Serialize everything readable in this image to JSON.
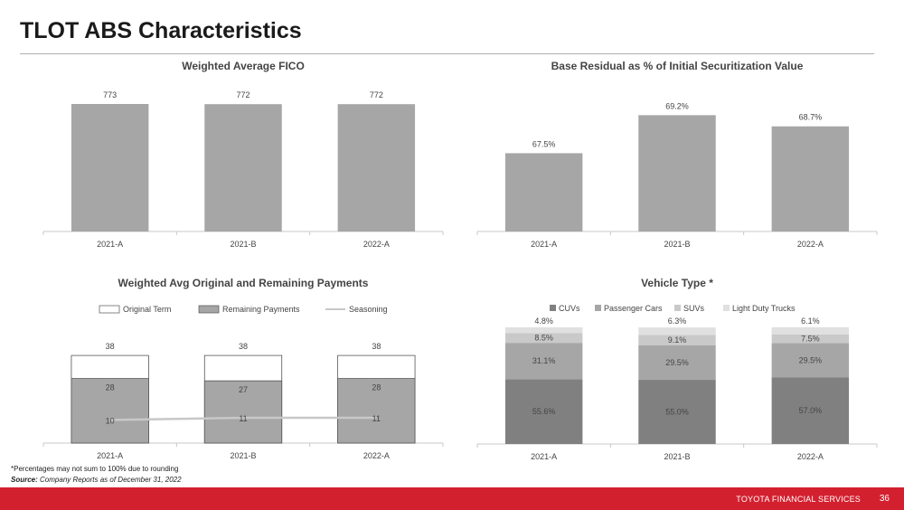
{
  "page": {
    "title": "TLOT ABS Characteristics",
    "footnote": "*Percentages may not sum to 100% due to rounding",
    "source_label": "Source:",
    "source_text": "Company Reports as of December 31, 2022",
    "footer_brand": "TOYOTA FINANCIAL SERVICES",
    "page_number": "36",
    "colors": {
      "accent": "#d3202f",
      "bar_gray": "#a6a6a6"
    }
  },
  "chart_data": [
    {
      "id": "fico",
      "type": "bar",
      "title": "Weighted Average FICO",
      "categories": [
        "2021-A",
        "2021-B",
        "2022-A"
      ],
      "values": [
        773,
        772,
        772
      ],
      "labels": [
        "773",
        "772",
        "772"
      ],
      "ylim": [
        0,
        773
      ],
      "grid": false,
      "color": "#a6a6a6"
    },
    {
      "id": "residual",
      "type": "bar",
      "title": "Base Residual as % of Initial Securitization Value",
      "categories": [
        "2021-A",
        "2021-B",
        "2022-A"
      ],
      "values": [
        67.5,
        69.2,
        68.7
      ],
      "labels": [
        "67.5%",
        "69.2%",
        "68.7%"
      ],
      "ylim": [
        64,
        69.7
      ],
      "grid": false,
      "color": "#a6a6a6"
    },
    {
      "id": "payments",
      "type": "bar",
      "title": "Weighted Avg Original and Remaining Payments",
      "categories": [
        "2021-A",
        "2021-B",
        "2022-A"
      ],
      "legend_position": "top",
      "series": [
        {
          "name": "Original Term",
          "values": [
            38,
            38,
            38
          ],
          "labels": [
            "38",
            "38",
            "38"
          ],
          "color": "#ffffff",
          "kind": "bar"
        },
        {
          "name": "Remaining Payments",
          "values": [
            28,
            27,
            28
          ],
          "labels": [
            "28",
            "27",
            "28"
          ],
          "color": "#a6a6a6",
          "kind": "bar"
        },
        {
          "name": "Seasoning",
          "values": [
            10,
            11,
            11
          ],
          "labels": [
            "10",
            "11",
            "11"
          ],
          "color": "#c8c8c8",
          "kind": "line"
        }
      ],
      "ylim": [
        0,
        40
      ]
    },
    {
      "id": "vehicle",
      "type": "bar",
      "stacked": true,
      "title": "Vehicle Type *",
      "categories": [
        "2021-A",
        "2021-B",
        "2022-A"
      ],
      "legend_position": "top",
      "series": [
        {
          "name": "CUVs",
          "values": [
            55.6,
            55.0,
            57.0
          ],
          "labels": [
            "55.6%",
            "55.0%",
            "57.0%"
          ],
          "color": "#808080"
        },
        {
          "name": "Passenger Cars",
          "values": [
            31.1,
            29.5,
            29.5
          ],
          "labels": [
            "31.1%",
            "29.5%",
            "29.5%"
          ],
          "color": "#a6a6a6"
        },
        {
          "name": "SUVs",
          "values": [
            8.5,
            9.1,
            7.5
          ],
          "labels": [
            "8.5%",
            "9.1%",
            "7.5%"
          ],
          "color": "#c9c9c9"
        },
        {
          "name": "Light Duty Trucks",
          "values": [
            4.8,
            6.3,
            6.1
          ],
          "labels": [
            "4.8%",
            "6.3%",
            "6.1%"
          ],
          "color": "#e0e0e0"
        }
      ],
      "ylim": [
        0,
        100
      ]
    }
  ]
}
